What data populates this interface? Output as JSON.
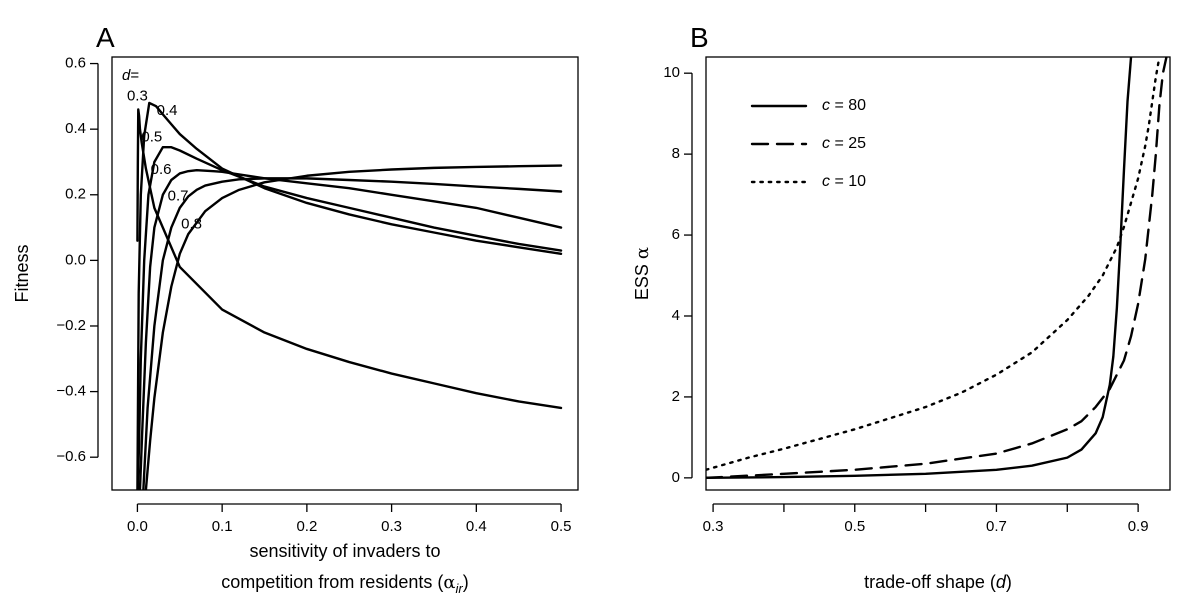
{
  "chart_data": [
    {
      "panel": "A",
      "type": "line",
      "xlabel_line1": "sensitivity of invaders to",
      "xlabel_line2_prefix": "competition from residents (",
      "xlabel_line2_symbol": "α",
      "xlabel_line2_subscript": "ir",
      "xlabel_line2_suffix": ")",
      "ylabel": "Fitness",
      "xlim": [
        -0.03,
        0.52
      ],
      "ylim": [
        -0.7,
        0.62
      ],
      "xticks": [
        0.0,
        0.1,
        0.2,
        0.3,
        0.4,
        0.5
      ],
      "xtick_labels": [
        "0.0",
        "0.1",
        "0.2",
        "0.3",
        "0.4",
        "0.5"
      ],
      "yticks": [
        -0.6,
        -0.4,
        -0.2,
        0.0,
        0.2,
        0.4,
        0.6
      ],
      "ytick_labels": [
        "−0.6",
        "−0.4",
        "−0.2",
        "0.0",
        "0.2",
        "0.4",
        "0.6"
      ],
      "legend_title": "d=",
      "legend_title_italic": "d",
      "legend_title_suffix": "=",
      "grid": false,
      "series": [
        {
          "name": "0.3",
          "label_at": [
            0.0,
            0.5
          ],
          "x": [
            0.0,
            0.0005,
            0.001,
            0.002,
            0.003,
            0.005,
            0.01,
            0.02,
            0.05,
            0.1,
            0.15,
            0.2,
            0.25,
            0.3,
            0.35,
            0.4,
            0.45,
            0.5
          ],
          "y": [
            0.06,
            0.3,
            0.46,
            0.44,
            0.4,
            0.36,
            0.28,
            0.16,
            -0.02,
            -0.15,
            -0.22,
            -0.27,
            -0.31,
            -0.345,
            -0.375,
            -0.405,
            -0.43,
            -0.45
          ]
        },
        {
          "name": "0.4",
          "label_at": [
            0.035,
            0.455
          ],
          "x": [
            0.0,
            0.0015,
            0.004,
            0.008,
            0.014,
            0.022,
            0.03,
            0.04,
            0.05,
            0.07,
            0.1,
            0.15,
            0.2,
            0.25,
            0.3,
            0.35,
            0.4,
            0.45,
            0.5
          ],
          "y": [
            -0.7,
            -0.1,
            0.2,
            0.38,
            0.48,
            0.47,
            0.445,
            0.415,
            0.385,
            0.34,
            0.28,
            0.22,
            0.175,
            0.14,
            0.11,
            0.085,
            0.06,
            0.04,
            0.02
          ]
        },
        {
          "name": "0.5",
          "label_at": [
            0.017,
            0.375
          ],
          "x": [
            0.0005,
            0.002,
            0.004,
            0.008,
            0.013,
            0.02,
            0.03,
            0.04,
            0.05,
            0.07,
            0.1,
            0.15,
            0.2,
            0.25,
            0.3,
            0.35,
            0.4,
            0.45,
            0.5
          ],
          "y": [
            -0.7,
            -0.55,
            -0.3,
            0.0,
            0.2,
            0.3,
            0.345,
            0.345,
            0.335,
            0.31,
            0.275,
            0.225,
            0.19,
            0.16,
            0.13,
            0.1,
            0.075,
            0.05,
            0.03
          ]
        },
        {
          "name": "0.6",
          "label_at": [
            0.028,
            0.275
          ],
          "x": [
            0.003,
            0.006,
            0.01,
            0.015,
            0.02,
            0.03,
            0.04,
            0.05,
            0.06,
            0.07,
            0.09,
            0.1,
            0.12,
            0.15,
            0.2,
            0.25,
            0.3,
            0.35,
            0.4,
            0.45,
            0.5
          ],
          "y": [
            -0.7,
            -0.5,
            -0.25,
            -0.02,
            0.1,
            0.2,
            0.245,
            0.265,
            0.272,
            0.275,
            0.272,
            0.27,
            0.262,
            0.25,
            0.235,
            0.22,
            0.2,
            0.18,
            0.16,
            0.13,
            0.1
          ]
        },
        {
          "name": "0.7",
          "label_at": [
            0.048,
            0.195
          ],
          "x": [
            0.007,
            0.012,
            0.02,
            0.03,
            0.04,
            0.05,
            0.06,
            0.07,
            0.08,
            0.1,
            0.12,
            0.15,
            0.2,
            0.25,
            0.3,
            0.35,
            0.4,
            0.45,
            0.5
          ],
          "y": [
            -0.7,
            -0.45,
            -0.2,
            0.0,
            0.1,
            0.16,
            0.195,
            0.215,
            0.228,
            0.24,
            0.247,
            0.25,
            0.25,
            0.245,
            0.24,
            0.233,
            0.225,
            0.218,
            0.21
          ]
        },
        {
          "name": "0.8",
          "label_at": [
            0.064,
            0.11
          ],
          "x": [
            0.01,
            0.015,
            0.02,
            0.03,
            0.04,
            0.05,
            0.06,
            0.08,
            0.1,
            0.12,
            0.15,
            0.2,
            0.25,
            0.3,
            0.35,
            0.4,
            0.45,
            0.5
          ],
          "y": [
            -0.7,
            -0.55,
            -0.42,
            -0.22,
            -0.08,
            0.02,
            0.08,
            0.15,
            0.19,
            0.215,
            0.238,
            0.258,
            0.27,
            0.277,
            0.282,
            0.285,
            0.287,
            0.289
          ]
        }
      ]
    },
    {
      "panel": "B",
      "type": "line",
      "xlabel_prefix": "trade-off shape (",
      "xlabel_symbol": "d",
      "xlabel_suffix": ")",
      "ylabel_prefix": "ESS ",
      "ylabel_symbol": "α",
      "xlim": [
        0.29,
        0.945
      ],
      "ylim": [
        -0.3,
        10.4
      ],
      "xticks": [
        0.3,
        0.4,
        0.5,
        0.6,
        0.7,
        0.8,
        0.9
      ],
      "xtick_labels": [
        "0.3",
        "",
        "0.5",
        "",
        "0.7",
        "",
        "0.9"
      ],
      "yticks": [
        0,
        2,
        4,
        6,
        8,
        10
      ],
      "ytick_labels": [
        "0",
        "2",
        "4",
        "6",
        "8",
        "10"
      ],
      "legend_position": "top-left",
      "grid": false,
      "series": [
        {
          "name_var": "c",
          "name_rest": " = 80",
          "style": "solid",
          "x": [
            0.29,
            0.4,
            0.5,
            0.6,
            0.7,
            0.75,
            0.8,
            0.82,
            0.84,
            0.85,
            0.86,
            0.865,
            0.87,
            0.875,
            0.88,
            0.885,
            0.89
          ],
          "y": [
            0.0,
            0.02,
            0.05,
            0.1,
            0.2,
            0.3,
            0.5,
            0.7,
            1.1,
            1.5,
            2.3,
            3.0,
            4.2,
            5.8,
            7.6,
            9.3,
            10.4
          ]
        },
        {
          "name_var": "c",
          "name_rest": " = 25",
          "style": "dashed",
          "x": [
            0.29,
            0.4,
            0.5,
            0.6,
            0.7,
            0.75,
            0.8,
            0.82,
            0.84,
            0.86,
            0.88,
            0.89,
            0.9,
            0.91,
            0.92,
            0.925,
            0.93,
            0.935,
            0.94
          ],
          "y": [
            0.0,
            0.1,
            0.2,
            0.35,
            0.6,
            0.85,
            1.2,
            1.4,
            1.75,
            2.2,
            2.9,
            3.5,
            4.3,
            5.4,
            7.0,
            8.0,
            9.2,
            10.0,
            10.4
          ]
        },
        {
          "name_var": "c",
          "name_rest": " = 10",
          "style": "dotted",
          "x": [
            0.29,
            0.35,
            0.4,
            0.5,
            0.6,
            0.65,
            0.7,
            0.75,
            0.8,
            0.83,
            0.85,
            0.87,
            0.88,
            0.89,
            0.9,
            0.905,
            0.91,
            0.915,
            0.92,
            0.925,
            0.93
          ],
          "y": [
            0.2,
            0.5,
            0.72,
            1.2,
            1.75,
            2.1,
            2.55,
            3.1,
            3.9,
            4.5,
            5.0,
            5.7,
            6.2,
            6.8,
            7.4,
            7.8,
            8.2,
            8.7,
            9.3,
            9.9,
            10.4
          ]
        }
      ]
    }
  ]
}
